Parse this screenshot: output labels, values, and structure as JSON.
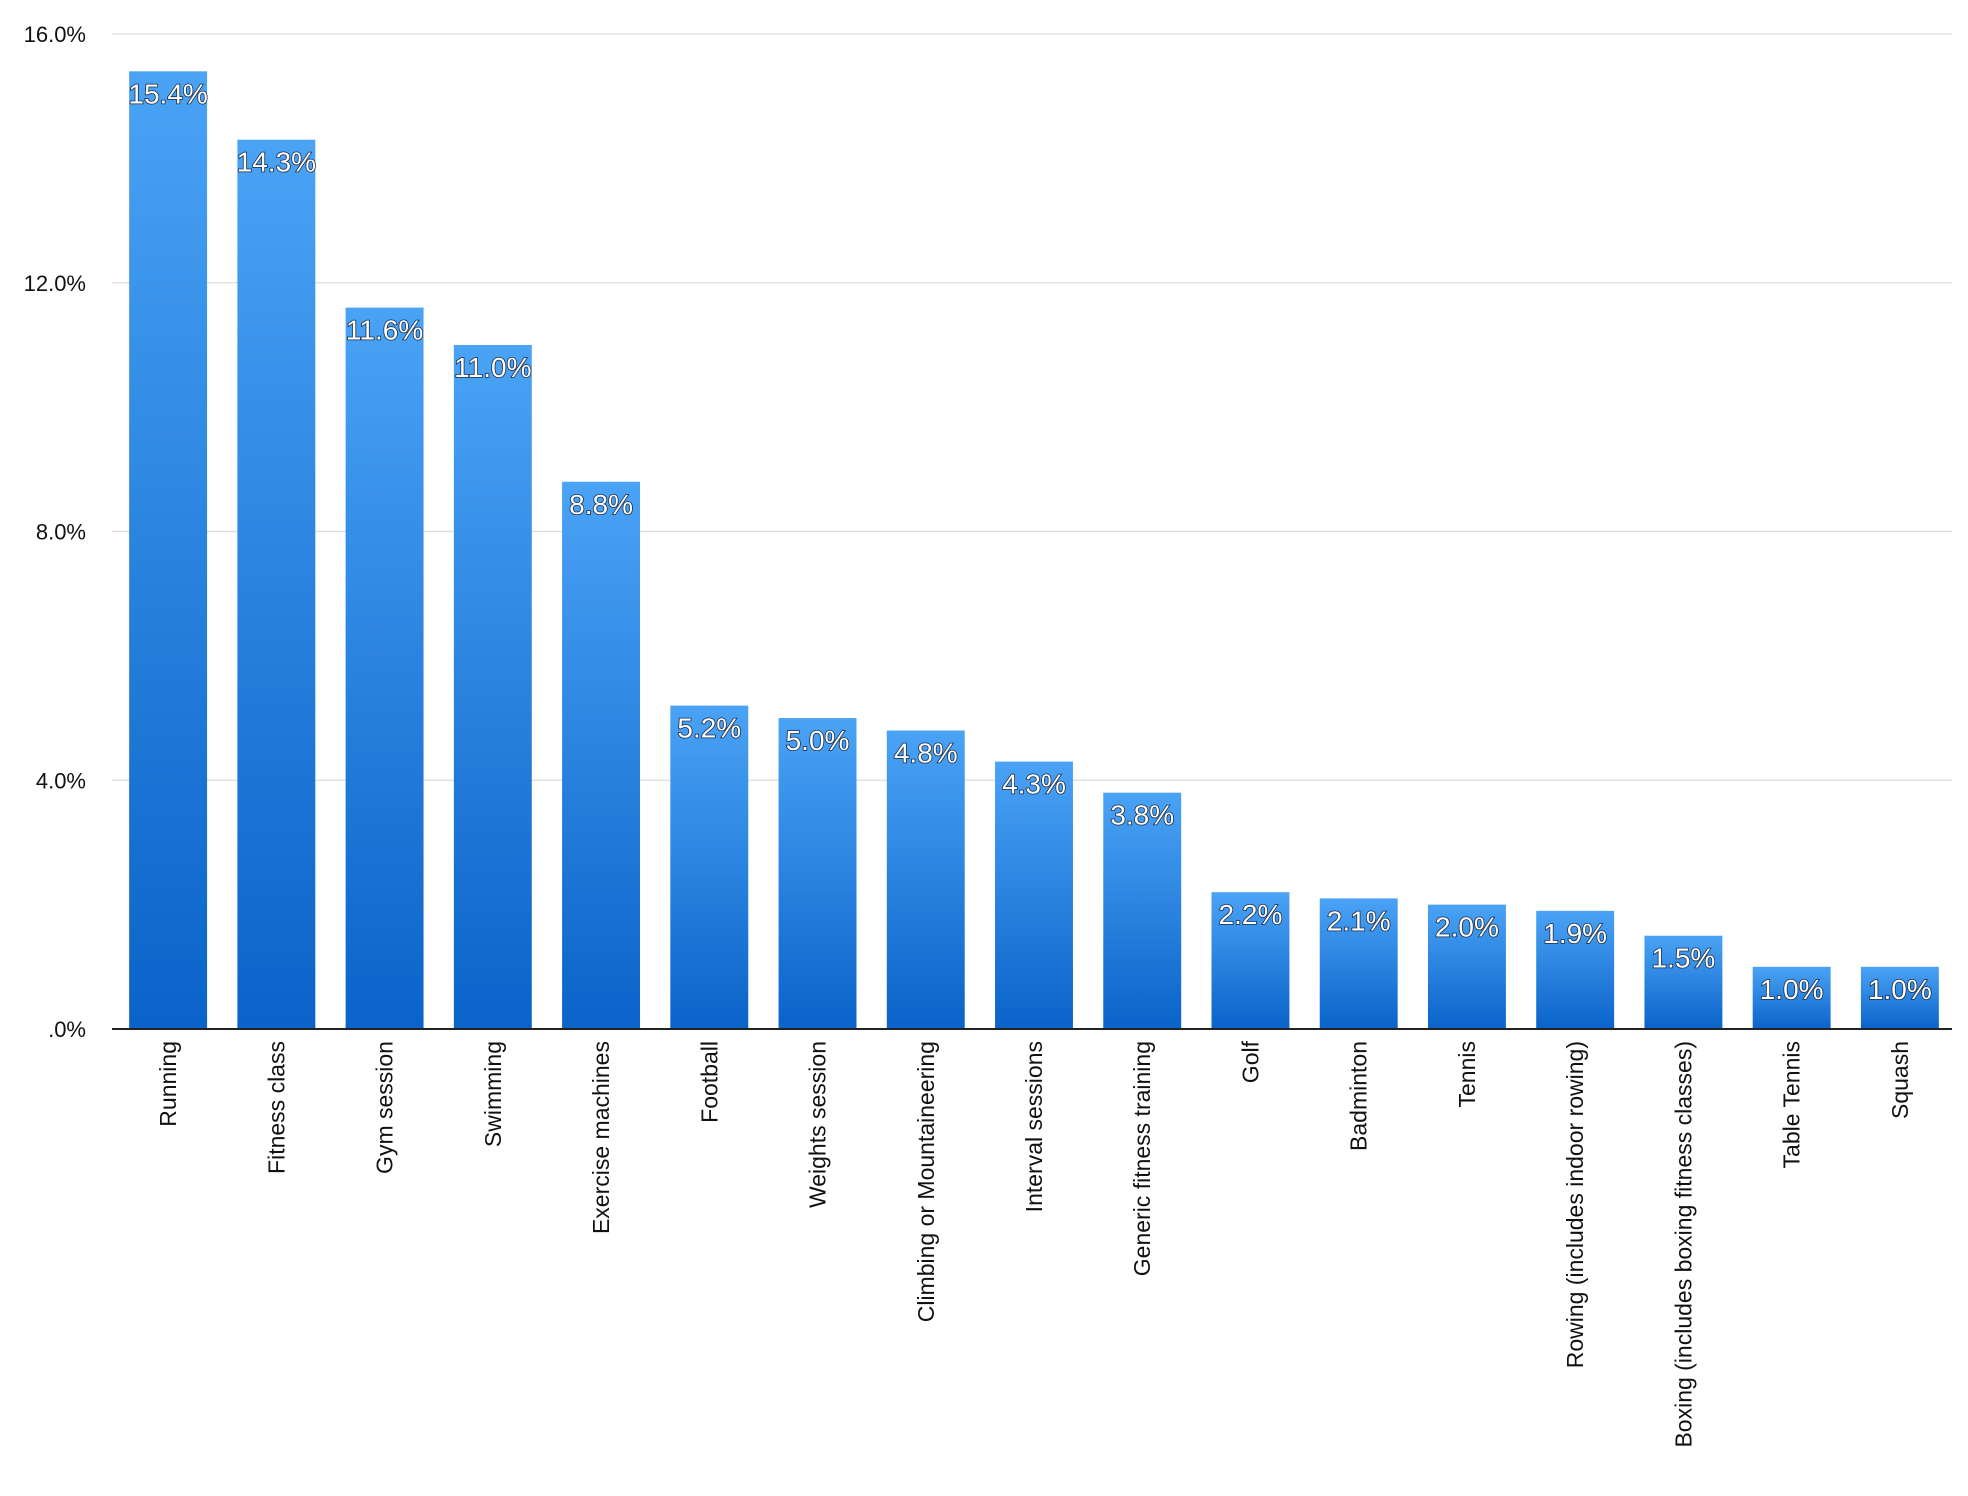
{
  "chart_data": {
    "type": "bar",
    "title": "",
    "xlabel": "",
    "ylabel": "",
    "ylim": [
      0,
      16
    ],
    "y_ticks": [
      0,
      4,
      8,
      12,
      16
    ],
    "y_tick_labels": [
      ".0%",
      "4.0%",
      "8.0%",
      "12.0%",
      "16.0%"
    ],
    "grid": true,
    "legend": "none",
    "colors": {
      "bar_top": "#4aa3f5",
      "bar_bottom": "#0a63c9",
      "grid": "#dcdcdc",
      "axis": "#222222"
    },
    "categories": [
      "Running",
      "Fitness class",
      "Gym session",
      "Swimming",
      "Exercise machines",
      "Football",
      "Weights session",
      "Climbing or Mountaineering",
      "Interval sessions",
      "Generic fitness training",
      "Golf",
      "Badminton",
      "Tennis",
      "Rowing (includes indoor rowing)",
      "Boxing (includes boxing fitness classes)",
      "Table Tennis",
      "Squash"
    ],
    "values": [
      15.4,
      14.3,
      11.6,
      11.0,
      8.8,
      5.2,
      5.0,
      4.8,
      4.3,
      3.8,
      2.2,
      2.1,
      2.0,
      1.9,
      1.5,
      1.0,
      1.0
    ],
    "value_labels": [
      "15.4%",
      "14.3%",
      "11.6%",
      "11.0%",
      "8.8%",
      "5.2%",
      "5.0%",
      "4.8%",
      "4.3%",
      "3.8%",
      "2.2%",
      "2.1%",
      "2.0%",
      "1.9%",
      "1.5%",
      "1.0%",
      "1.0%"
    ]
  }
}
